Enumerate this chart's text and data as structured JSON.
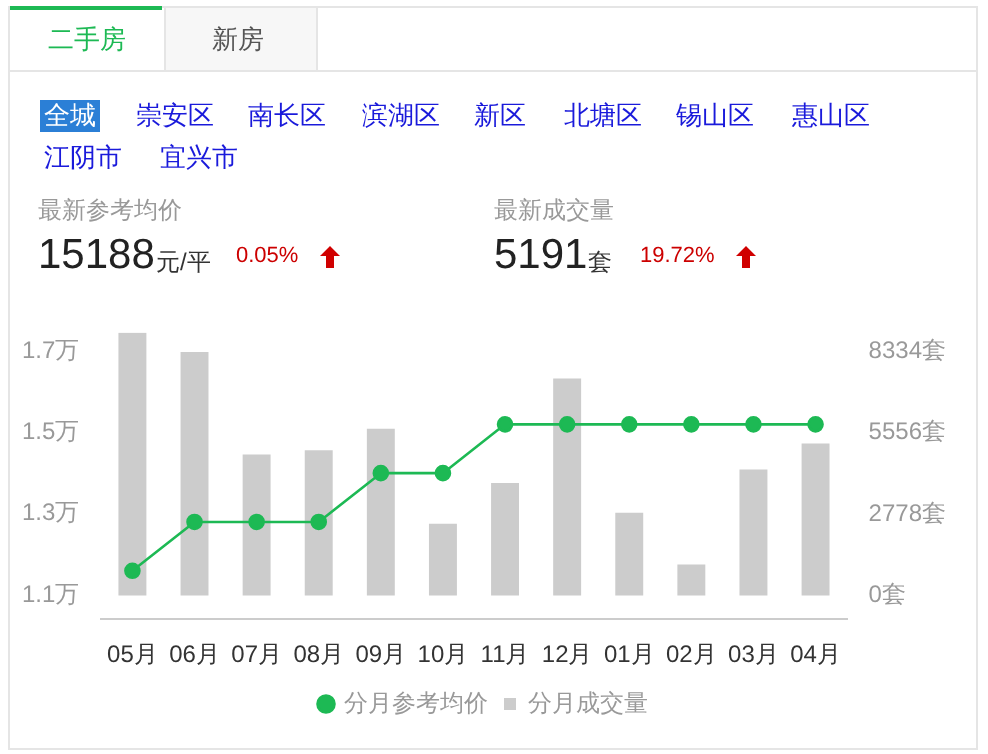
{
  "chart_data": {
    "type": "bar",
    "categories": [
      "05月",
      "06月",
      "07月",
      "08月",
      "09月",
      "10月",
      "11月",
      "12月",
      "01月",
      "02月",
      "03月",
      "04月"
    ],
    "series": [
      {
        "name": "分月参考均价",
        "type": "line",
        "color": "#1db954",
        "values": [
          1.16,
          1.28,
          1.28,
          1.28,
          1.4,
          1.4,
          1.52,
          1.52,
          1.52,
          1.52,
          1.52,
          1.52
        ]
      },
      {
        "name": "分月成交量",
        "type": "bar",
        "axis": "y2",
        "color": "#cccccc",
        "values": [
          8970,
          8310,
          4810,
          4960,
          5690,
          2450,
          3840,
          7410,
          2820,
          1060,
          4300,
          5190
        ]
      }
    ],
    "ylim": [
      1.041,
      1.746
    ],
    "yticks": [
      {
        "value": 1.1,
        "label": "1.1万"
      },
      {
        "value": 1.3,
        "label": "1.3万"
      },
      {
        "value": 1.5,
        "label": "1.5万"
      },
      {
        "value": 1.7,
        "label": "1.7万"
      }
    ],
    "y2lim": [
      -810,
      8980
    ],
    "y2ticks": [
      {
        "value": 0,
        "label": "0套"
      },
      {
        "value": 2778,
        "label": "2778套"
      },
      {
        "value": 5556,
        "label": "5556套"
      },
      {
        "value": 8334,
        "label": "8334套"
      }
    ],
    "marker": "circle",
    "legend": "bottom",
    "annotations": [
      "二手房",
      "新房",
      "全城",
      "崇安区",
      "南长区",
      "滨湖区",
      "新区",
      "北塘区",
      "锡山区",
      "惠山区",
      "江阴市",
      "宜兴市",
      "最新参考均价",
      "15188",
      "元/平",
      "0.05%",
      "最新成交量",
      "5191",
      "套",
      "19.72%"
    ]
  }
}
